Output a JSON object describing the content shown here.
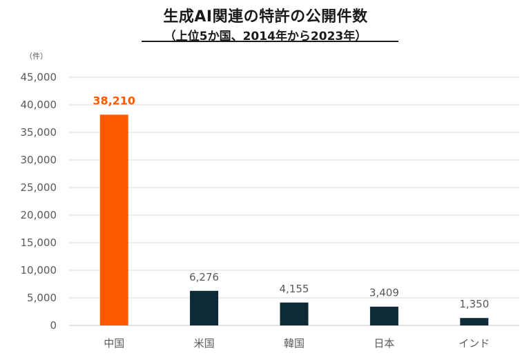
{
  "title": "生成AI関連の特許の公開件数",
  "subtitle": "（上位5か国、2014年から2023年）",
  "unit_label": "（件）",
  "colors": {
    "highlight": "#ff5a00",
    "bar": "#0d2a36",
    "grid": "#d9d9d9",
    "axis": "#bfbfbf",
    "label": "#595959"
  },
  "chart_data": {
    "type": "bar",
    "categories": [
      "中国",
      "米国",
      "韓国",
      "日本",
      "インド"
    ],
    "values": [
      38210,
      6276,
      4155,
      3409,
      1350
    ],
    "data_labels": [
      "38,210",
      "6,276",
      "4,155",
      "3,409",
      "1,350"
    ],
    "highlight_index": 0,
    "ylim": [
      0,
      45000
    ],
    "yticks": [
      0,
      5000,
      10000,
      15000,
      20000,
      25000,
      30000,
      35000,
      40000,
      45000
    ],
    "ytick_labels": [
      "0",
      "5,000",
      "10,000",
      "15,000",
      "20,000",
      "25,000",
      "30,000",
      "35,000",
      "40,000",
      "45,000"
    ],
    "grid": true,
    "xlabel": "",
    "ylabel": "（件）"
  }
}
